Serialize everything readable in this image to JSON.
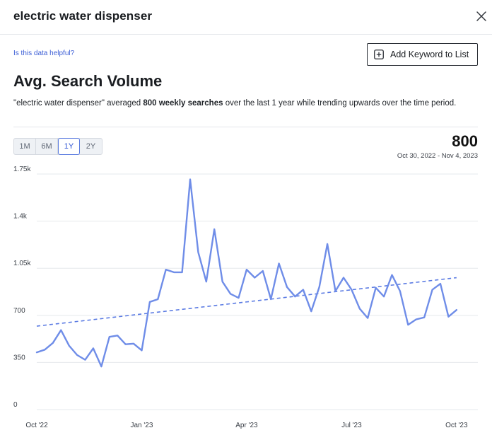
{
  "modal": {
    "title": "electric water dispenser",
    "close_icon": "close-icon"
  },
  "feedback_link": "Is this data helpful?",
  "add_keyword_button": {
    "label": "Add Keyword to List",
    "icon": "plus-square-icon"
  },
  "section": {
    "title": "Avg. Search Volume",
    "description_prefix": "\"electric water dispenser\" averaged ",
    "description_bold": "800 weekly searches",
    "description_suffix": " over the last 1 year while trending upwards over the time period."
  },
  "range_tabs": [
    {
      "label": "1M",
      "active": false
    },
    {
      "label": "6M",
      "active": false
    },
    {
      "label": "1Y",
      "active": true
    },
    {
      "label": "2Y",
      "active": false
    }
  ],
  "summary": {
    "value": "800",
    "date_range": "Oct 30, 2022 - Nov 4, 2023"
  },
  "colors": {
    "line": "#6f8de8",
    "trend": "#5b7be3",
    "accent": "#2f55d4",
    "grid": "#e6e8ec"
  },
  "chart_data": {
    "type": "line",
    "title": "",
    "xlabel": "",
    "ylabel": "",
    "ylim": [
      0,
      1750
    ],
    "y_ticks": [
      {
        "value": 0,
        "label": "0"
      },
      {
        "value": 350,
        "label": "350"
      },
      {
        "value": 700,
        "label": "700"
      },
      {
        "value": 1050,
        "label": "1.05k"
      },
      {
        "value": 1400,
        "label": "1.4k"
      },
      {
        "value": 1750,
        "label": "1.75k"
      }
    ],
    "x_ticks": [
      {
        "week": 0,
        "label": "Oct '22"
      },
      {
        "week": 13,
        "label": "Jan '23"
      },
      {
        "week": 26,
        "label": "Apr '23"
      },
      {
        "week": 39,
        "label": "Jul '23"
      },
      {
        "week": 52,
        "label": "Oct '23"
      }
    ],
    "grid": true,
    "series": [
      {
        "values": [
          425,
          445,
          495,
          590,
          475,
          405,
          370,
          455,
          320,
          540,
          550,
          485,
          490,
          440,
          800,
          820,
          1040,
          1020,
          1020,
          1710,
          1170,
          950,
          1340,
          950,
          860,
          830,
          1040,
          980,
          1030,
          820,
          1085,
          910,
          840,
          890,
          730,
          910,
          1230,
          880,
          980,
          890,
          750,
          680,
          905,
          840,
          1000,
          880,
          630,
          670,
          685,
          890,
          935,
          690,
          740
        ]
      }
    ],
    "trend": {
      "start": 620,
      "end": 980
    }
  }
}
